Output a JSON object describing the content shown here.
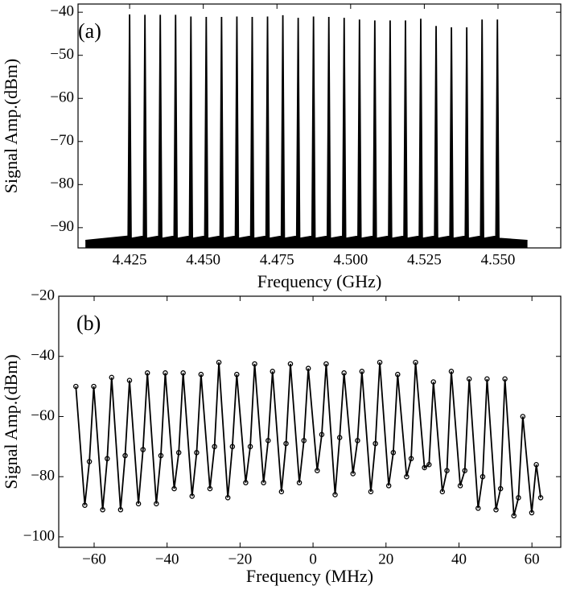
{
  "chart_data": [
    {
      "type": "line",
      "annotation": "(a)",
      "xlabel": "Frequency (GHz)",
      "ylabel": "Signal Amp.(dBm)",
      "xlim": [
        4.4075,
        4.5713
      ],
      "ylim": [
        -94.7,
        -38.1
      ],
      "xticks": [
        {
          "value": 4.425,
          "label": "4.425"
        },
        {
          "value": 4.45,
          "label": "4.450"
        },
        {
          "value": 4.475,
          "label": "4.475"
        },
        {
          "value": 4.5,
          "label": "4.500"
        },
        {
          "value": 4.525,
          "label": "4.525"
        },
        {
          "value": 4.55,
          "label": "4.550"
        }
      ],
      "yticks": [
        {
          "value": -90,
          "label": "−90"
        },
        {
          "value": -80,
          "label": "−80"
        },
        {
          "value": -70,
          "label": "−70"
        },
        {
          "value": -60,
          "label": "−60"
        },
        {
          "value": -50,
          "label": "−50"
        },
        {
          "value": -40,
          "label": "−40"
        }
      ],
      "fill_below": true,
      "series": [
        {
          "color": "#000000",
          "x": [
            4.41,
            4.4245,
            4.425,
            4.4255,
            4.4297,
            4.4302,
            4.4307,
            4.4349,
            4.4354,
            4.4359,
            4.4401,
            4.4406,
            4.4411,
            4.4453,
            4.4458,
            4.4463,
            4.4505,
            4.451,
            4.4515,
            4.4557,
            4.4562,
            4.4567,
            4.4609,
            4.4614,
            4.4619,
            4.4661,
            4.4666,
            4.4671,
            4.4713,
            4.4718,
            4.4723,
            4.4765,
            4.477,
            4.4775,
            4.4817,
            4.4822,
            4.4827,
            4.4869,
            4.4874,
            4.4879,
            4.4921,
            4.4926,
            4.4931,
            4.4973,
            4.4978,
            4.4983,
            4.5025,
            4.503,
            4.5035,
            4.5077,
            4.5082,
            4.5087,
            4.5129,
            4.5134,
            4.5139,
            4.5181,
            4.5186,
            4.5191,
            4.5233,
            4.5238,
            4.5243,
            4.5285,
            4.529,
            4.5295,
            4.5337,
            4.5342,
            4.5347,
            4.5389,
            4.5394,
            4.5399,
            4.5441,
            4.5446,
            4.5451,
            4.5493,
            4.5498,
            4.5503,
            4.56
          ],
          "values": [
            -93,
            -92,
            -40.5,
            -92.5,
            -92,
            -40.6,
            -92.5,
            -92,
            -40.6,
            -92.5,
            -92,
            -40.6,
            -92.5,
            -92,
            -41,
            -92.5,
            -92,
            -41.1,
            -92.5,
            -92,
            -41.1,
            -92.5,
            -92,
            -41,
            -92.5,
            -92,
            -41.1,
            -92.5,
            -92,
            -41,
            -92.5,
            -92,
            -40.7,
            -92.5,
            -92,
            -41.3,
            -92.5,
            -92,
            -41,
            -92.5,
            -92,
            -41.1,
            -92.5,
            -92,
            -41.3,
            -92.5,
            -92,
            -41.7,
            -92.5,
            -92,
            -41.9,
            -92.5,
            -92,
            -41.9,
            -92.5,
            -92,
            -41.9,
            -92.5,
            -92,
            -41.5,
            -92.5,
            -92,
            -43.2,
            -92.5,
            -92,
            -43.5,
            -92.5,
            -92,
            -43.5,
            -92.5,
            -92,
            -41.7,
            -92.5,
            -92,
            -41.7,
            -92.5,
            -93
          ]
        }
      ]
    },
    {
      "type": "line",
      "annotation": "(b)",
      "xlabel": "Frequency (MHz)",
      "ylabel": "Signal Amp.(dBm)",
      "xlim": [
        -69.7,
        67.9
      ],
      "ylim": [
        -103.5,
        -20
      ],
      "xticks": [
        {
          "value": -60,
          "label": "−60"
        },
        {
          "value": -40,
          "label": "−40"
        },
        {
          "value": -20,
          "label": "−20"
        },
        0,
        20,
        40,
        60
      ],
      "yticks": [
        {
          "value": -100,
          "label": "−100"
        },
        {
          "value": -80,
          "label": "−80"
        },
        {
          "value": -60,
          "label": "−60"
        },
        {
          "value": -40,
          "label": "−40"
        },
        {
          "value": -20,
          "label": "−20"
        }
      ],
      "marker": "circle",
      "series": [
        {
          "color": "#000000",
          "x": [
            -65,
            -62.55,
            -61.3,
            -60.1,
            -57.65,
            -56.4,
            -55.2,
            -52.75,
            -51.5,
            -50.3,
            -47.85,
            -46.6,
            -45.4,
            -42.95,
            -41.7,
            -40.5,
            -38.05,
            -36.8,
            -35.6,
            -33.15,
            -31.9,
            -30.7,
            -28.25,
            -27,
            -25.8,
            -23.35,
            -22.1,
            -20.9,
            -18.45,
            -17.2,
            -16,
            -13.55,
            -12.3,
            -11.1,
            -8.65,
            -7.4,
            -6.2,
            -3.75,
            -2.5,
            -1.3,
            1.15,
            2.4,
            3.6,
            6.05,
            7.3,
            8.5,
            10.95,
            12.2,
            13.4,
            15.85,
            17.1,
            18.3,
            20.75,
            22,
            23.2,
            25.65,
            26.9,
            28.1,
            30.55,
            31.8,
            33,
            35.45,
            36.7,
            37.9,
            40.35,
            41.6,
            42.8,
            45.25,
            46.5,
            47.7,
            50.15,
            51.4,
            52.6,
            55.05,
            56.3,
            57.5,
            59.95,
            61.2,
            62.4
          ],
          "values": [
            -50,
            -89.5,
            -75,
            -50,
            -91,
            -74,
            -47,
            -91,
            -73,
            -48,
            -89,
            -71,
            -45.5,
            -89,
            -73,
            -45.5,
            -84,
            -72,
            -45.5,
            -86.5,
            -72,
            -46,
            -84,
            -70,
            -42,
            -87,
            -70,
            -46,
            -82,
            -70,
            -42.5,
            -82,
            -68,
            -45,
            -85,
            -69,
            -42.5,
            -82,
            -68,
            -44,
            -78,
            -66,
            -42.5,
            -86,
            -67,
            -45.5,
            -79,
            -68,
            -45,
            -85,
            -69,
            -42,
            -83,
            -72,
            -46,
            -80,
            -74,
            -42,
            -77,
            -76,
            -48.5,
            -85,
            -78,
            -45,
            -83,
            -78,
            -47.5,
            -90.5,
            -80,
            -47.5,
            -91,
            -84,
            -47.5,
            -93,
            -87,
            -60,
            -92,
            -76,
            -87
          ]
        }
      ]
    }
  ]
}
